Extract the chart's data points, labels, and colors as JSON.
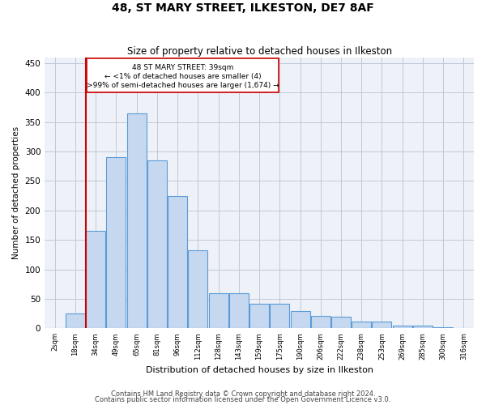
{
  "title": "48, ST MARY STREET, ILKESTON, DE7 8AF",
  "subtitle": "Size of property relative to detached houses in Ilkeston",
  "xlabel": "Distribution of detached houses by size in Ilkeston",
  "ylabel": "Number of detached properties",
  "categories": [
    "2sqm",
    "18sqm",
    "34sqm",
    "49sqm",
    "65sqm",
    "81sqm",
    "96sqm",
    "112sqm",
    "128sqm",
    "143sqm",
    "159sqm",
    "175sqm",
    "190sqm",
    "206sqm",
    "222sqm",
    "238sqm",
    "253sqm",
    "269sqm",
    "285sqm",
    "300sqm",
    "316sqm"
  ],
  "values": [
    1,
    26,
    165,
    290,
    365,
    285,
    224,
    133,
    60,
    60,
    42,
    42,
    30,
    21,
    20,
    11,
    11,
    5,
    5,
    2,
    1
  ],
  "bar_color": "#c5d8f0",
  "bar_edge_color": "#5b9bd5",
  "grid_color": "#c0c8d8",
  "bg_color": "#eef2f8",
  "annotation_box_color": "#ffffff",
  "annotation_box_edge": "#cc0000",
  "vline_color": "#cc0000",
  "vline_x_index": 2,
  "annotation_text_line1": "48 ST MARY STREET: 39sqm",
  "annotation_text_line2": "← <1% of detached houses are smaller (4)",
  "annotation_text_line3": ">99% of semi-detached houses are larger (1,674) →",
  "footer1": "Contains HM Land Registry data © Crown copyright and database right 2024.",
  "footer2": "Contains public sector information licensed under the Open Government Licence v3.0.",
  "ylim": [
    0,
    460
  ],
  "yticks": [
    0,
    50,
    100,
    150,
    200,
    250,
    300,
    350,
    400,
    450
  ]
}
